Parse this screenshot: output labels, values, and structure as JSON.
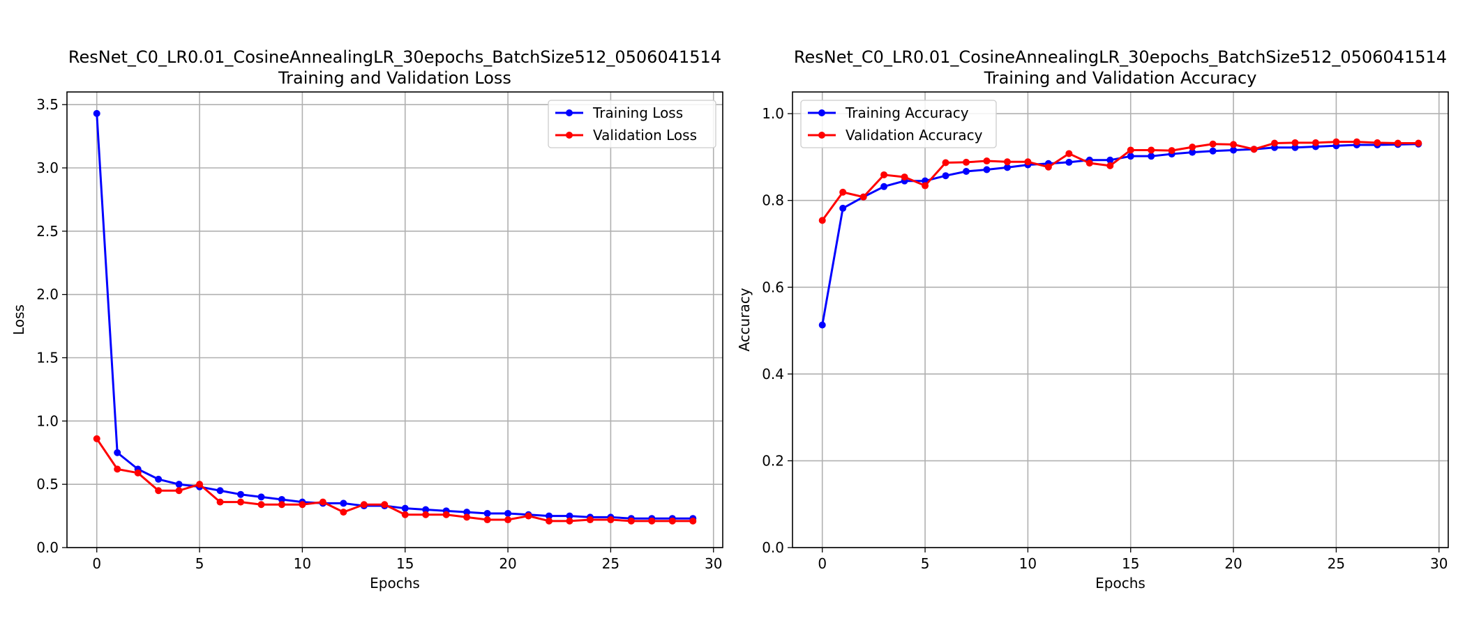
{
  "chart_data": [
    {
      "type": "line",
      "title": "ResNet_C0_LR0.01_CosineAnnealingLR_30epochs_BatchSize512_0506041514",
      "subtitle": "Training and Validation Loss",
      "xlabel": "Epochs",
      "ylabel": "Loss",
      "xlim": [
        -1.45,
        30.45
      ],
      "ylim": [
        0,
        3.6
      ],
      "xticks": [
        0,
        5,
        10,
        15,
        20,
        25,
        30
      ],
      "yticks": [
        0.0,
        0.5,
        1.0,
        1.5,
        2.0,
        2.5,
        3.0,
        3.5
      ],
      "ytick_labels": [
        "0.0",
        "0.5",
        "1.0",
        "1.5",
        "2.0",
        "2.5",
        "3.0",
        "3.5"
      ],
      "grid": true,
      "legend_position": "top-right",
      "x": [
        0,
        1,
        2,
        3,
        4,
        5,
        6,
        7,
        8,
        9,
        10,
        11,
        12,
        13,
        14,
        15,
        16,
        17,
        18,
        19,
        20,
        21,
        22,
        23,
        24,
        25,
        26,
        27,
        28,
        29
      ],
      "series": [
        {
          "name": "Training Loss",
          "color": "#0000ff",
          "values": [
            3.43,
            0.75,
            0.62,
            0.54,
            0.5,
            0.48,
            0.45,
            0.42,
            0.4,
            0.38,
            0.36,
            0.35,
            0.35,
            0.33,
            0.33,
            0.31,
            0.3,
            0.29,
            0.28,
            0.27,
            0.27,
            0.26,
            0.25,
            0.25,
            0.24,
            0.24,
            0.23,
            0.23,
            0.23,
            0.23
          ]
        },
        {
          "name": "Validation Loss",
          "color": "#ff0000",
          "values": [
            0.86,
            0.62,
            0.59,
            0.45,
            0.45,
            0.5,
            0.36,
            0.36,
            0.34,
            0.34,
            0.34,
            0.36,
            0.28,
            0.34,
            0.34,
            0.26,
            0.26,
            0.26,
            0.24,
            0.22,
            0.22,
            0.25,
            0.21,
            0.21,
            0.22,
            0.22,
            0.21,
            0.21,
            0.21,
            0.21
          ]
        }
      ]
    },
    {
      "type": "line",
      "title": "ResNet_C0_LR0.01_CosineAnnealingLR_30epochs_BatchSize512_0506041514",
      "subtitle": "Training and Validation Accuracy",
      "xlabel": "Epochs",
      "ylabel": "Accuracy",
      "xlim": [
        -1.45,
        30.45
      ],
      "ylim": [
        0,
        1.05
      ],
      "xticks": [
        0,
        5,
        10,
        15,
        20,
        25,
        30
      ],
      "yticks": [
        0.0,
        0.2,
        0.4,
        0.6,
        0.8,
        1.0
      ],
      "ytick_labels": [
        "0.0",
        "0.2",
        "0.4",
        "0.6",
        "0.8",
        "1.0"
      ],
      "grid": true,
      "legend_position": "top-left",
      "x": [
        0,
        1,
        2,
        3,
        4,
        5,
        6,
        7,
        8,
        9,
        10,
        11,
        12,
        13,
        14,
        15,
        16,
        17,
        18,
        19,
        20,
        21,
        22,
        23,
        24,
        25,
        26,
        27,
        28,
        29
      ],
      "series": [
        {
          "name": "Training Accuracy",
          "color": "#0000ff",
          "values": [
            0.513,
            0.782,
            0.808,
            0.832,
            0.845,
            0.845,
            0.857,
            0.867,
            0.871,
            0.876,
            0.882,
            0.885,
            0.888,
            0.893,
            0.893,
            0.902,
            0.902,
            0.907,
            0.911,
            0.914,
            0.916,
            0.918,
            0.922,
            0.922,
            0.924,
            0.926,
            0.928,
            0.928,
            0.929,
            0.93
          ]
        },
        {
          "name": "Validation Accuracy",
          "color": "#ff0000",
          "values": [
            0.754,
            0.819,
            0.808,
            0.859,
            0.854,
            0.834,
            0.887,
            0.888,
            0.891,
            0.889,
            0.889,
            0.877,
            0.908,
            0.886,
            0.88,
            0.916,
            0.916,
            0.915,
            0.923,
            0.93,
            0.929,
            0.918,
            0.932,
            0.933,
            0.933,
            0.935,
            0.935,
            0.933,
            0.932,
            0.932
          ]
        }
      ]
    }
  ]
}
